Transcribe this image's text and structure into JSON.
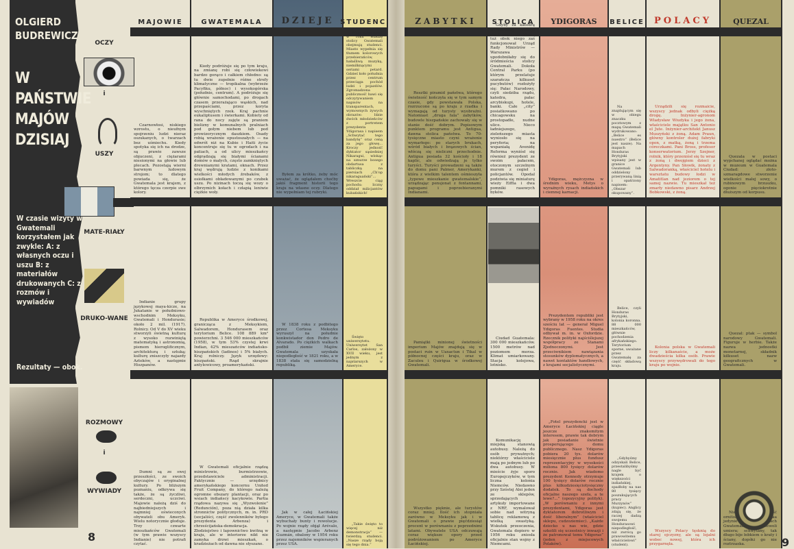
{
  "sidebar": {
    "author": "OLGIERD BUDREWICZ",
    "title_lines": [
      "W",
      "PAŃSTWIE",
      "MAJÓW",
      "DZISIAJ"
    ],
    "intro": "W czasie wizyty w Gwatemali korzystałem jak zwykle: A: z własnych oczu i uszu B: z materiałów drukowanych C: z rozmów i wywiadów",
    "outro": "Rezultaty — obok."
  },
  "sources": {
    "a_label_top": "OCZY",
    "a_label_mid": "i",
    "a_label_bottom": "USZY",
    "b_label_top": "MATE-RIAŁY",
    "b_label_bottom": "DRUKO-WANE",
    "c_label_top": "ROZMOWY",
    "c_label_mid": "i",
    "c_label_bottom": "WYWIADY",
    "icons": [
      "eye-icon",
      "ear-icon",
      "guatemala-flag",
      "reading-man-icon",
      "mouth-icon",
      "mouth-icon"
    ]
  },
  "colors": {
    "dark": "#2b2b2b",
    "paper": "#e8e3d2",
    "dzieje_blue": "#5f7386",
    "studenci_yellow": "#e9de9c",
    "zabytki_olive": "#aaa06a",
    "ydigoras_salmon": "#e3a48d",
    "polacy_red": "#c0392b"
  },
  "columns": [
    {
      "id": "majowie",
      "header": "MAJOWIE",
      "cells": [
        "Czarnowłosi, niskiego wzrostu, o nieufnym spojrzeniu ludzi nieraz oszukanych, o twarzach bez uśmiechu. Kiedy spotyka się ich na drodze, są prawie zawsze objuczeni, z ciężarami niesionymi na głowie lub plecach. Pozostają wierni barwnym ludowym strojom; to dlatego powiada się, że Gwatemala jest krajem, z którego tęcza czerpie swe kolory.",
        "Indianie grupy językowej maya-kicze, na Jukatanie w południowo-wschodnim Meksyku, Gwatemali i Hondurasie; około 2 mil. (1917). Rolnicy. Od V do XV wieku stworzyli świetną kulturę z wysoko rozwiniętą matematyką i astronomią, pismem hieroglificznym, architekturą i sztuką; kulturę zniszczyły najazdy Azteków, a następnie Hiszpanów.",
        "Dumni są ze swej przeszłości, ze swoich obyczajów i oryginalnej kultury. Po bliższym poznaniu, odkrywa się także, że są życzliwi, serdeczni, uczciwi. Majowie należą dziś do najbiedniejszych i najmniej oświeconych obywateli obu Ameryk. Wielu notorycznie głoduje. Trzy czwarte mieszkańców Gwatemali (w tym prawie wszyscy Indianie) nie potrafi czytać."
      ]
    },
    {
      "id": "gwatemala",
      "header": "GWATEMALA",
      "cells": [
        "Kiedy podróżuje się po tym kraju, na zmianę robi się człowiekowi bardzo gorąco i całkiem chłodno: są tu dwie zupełnie różne strefy klimatyczne — tropikalna (wybrzeże Pacyfiku, północ) i wysokogórska (południe, centrum). A podróżuje się głównie samochodami, po drogach czasem przerażająco wąskich, nad przepaściami, przez koryta wyschniętych rzek. Kraj pachnie eukaliptusem i świerkami. Kobiety od rana do nocy zajęte są praniem bielizny w komunalnych pralniach pod gołym niebem lub pod prowizorycznym daszkiem. Osady robią wrażenie opustoszałych — na odwrót niż na Kubie i Haiti życie koncentruje się tu w ogrodach i na patiach, a od ulicy mieszkańcy odgradzają się białymi ścianami domów o małych, często zamkniętych drewnianymi kratami, oknach. Przez kraj wędrują ludzie z konikami wielkości młodych źrebaków, z osiołkami obładowanymi po czubek uszu. Po nizinach toczą się wozy o olbrzymich kołach i człapią leniwie ciężkie woły.",
        "Republika w Ameryce środkowej, granicząca z Meksykiem, Salwadorem, Hondurasem oraz terytorium Belice. 108 889 km² powierzchni. 3 546 000 mieszkańców (1958), w tym 53% czystej krwi Indian, 42% mieszańców indiańsko-hiszpańskich (ladinos) i 5% białych. Kraj rolniczy. Język urzędowy: hiszpański. Rząd skrajnie antylewicowy, proamerykański.",
        "W Gwatemali oficjalnie rządzą ministrowie, burmistrzowie, przedstawiciele administracji. Faktycznie — urzędnicy amerykańskiego koncernu United Fruit Company, do którego należą ogromne obszary plantacji, oraz po wsiach indiańscy kacykowie. Partia rządowa nazywa się „Wyzwolenie” (Redunción), poza nią działa kilka stronnictw politycznych, m. in. PRD (socjaliści, część zwolenników byłego prezydenta Arbenza) i chrześcijańska-demokracja. Złodziejstwo i łapownictwo kwitną w kraju, ale w interiorze nikt nie zamyka drzwi mieszkań, o kradzieżach od dawna nie słyszano."
      ]
    },
    {
      "id": "dzieje",
      "header": "DZIEJE",
      "cells": [
        "Byłem za krótko, żeby móc uważać, że oglądałem choćby jakiś fragment historii tego kraju na własne oczy. Dlatego nie wypełniam tej rubryki.",
        "W 1838 roku z podbitego przez Cortesa Meksyku wyruszył na południe konkwistador don Pedro de Alvarado. Po ciężkich walkach podbił ziemie Majów. Gwatemala uzyskała niepodległość w 1821 roku, a w 1838 stała się samodzielną republiką.",
        "Jak w całej Łacińskiej Ameryce, w Gwatemali także wybuchały bunty i rewolucje. Po wojnie rządy objął Arévalo, a następnie Jacobo Arbenz Guzmán, obalony w 1954 roku przez najemników wspieranych przez USA."
      ]
    },
    {
      "id": "studenci",
      "header": "STUDENCI",
      "cells": [
        "Przez jeden dzień w roku władzę stolicy Gwatemali obejmują studenci. Miasto wypełnia się tłumem kolorowych przebierańców, hałaśliwą muzyką, niemilknącymi seriami petard. Gdzieś koło południa przez centrum przeciąga pochód ludzi i pojazdów. Zgromadzona publiczność bawi się odczytywaniem napisów na transparentach, wymownych żywych obrazów: Idzie dwóch młodzieńców z portretem prezydenta Ydigorasa i napisem „Schwytać tego bandytę” oraz ceną za jego głowę... Kroczy jedność dyktator sąsiedniej Nikaragui, wlokąc na sznurze bosego obdartusa z tabliczką na piersiach „Ch'op nikaraguański”... Wreszcie ciąg pochodu: liczny oddział milicjantów kubańskich!",
        "Święto uniwersytetu. Uniwersytet San Carlos, założony w XVII wieku, jest jednym z najstarszych w Ameryce.",
        "„Takie święto to więcej niż demonstracja” — twierdzą studenci. „Nasze rządy boją się tego dnia.”"
      ]
    },
    {
      "id": "zabytki",
      "header": "ZABYTKI",
      "cells": [
        "Resztki piramid państwa, którego świetność kończyła się w tym samym czasie, gdy powstawała Polska, rozrzucone są po kraju z rzadka i wymagają od turysty wyobraźni. Natomiast „druga fala” zabytków, budowle hiszpańskie zachowały się w stanie dość dobrym. Popisowym punktem programu jest Antigua, dawna stolica państwa. To 70-tysięczne miasto czyni wrażenie wymarłego: po starych brukach, wśród białych i brązowych ścian, włóczą się nieliczni przechodnie. Antigua posiada 32 kościoły i 18 kaplic, ale odwiedzają je tylko turyści. Turyści prowadzeni są także do domu pani Palmer, Amerykanki, która z wielkim talentem ośmieszyła „typowe mieszkanie gwatemalskie”, urządzając pensjonat z fontannami, papugami i poprzebieranymi Indianami.",
        "Pamiątki minionej świetności imperium Majów znajdują się w postaci ruin w Uaxactun i Tikal w północnej części kraju, oraz w Zaculeu i Quirigua w środkowej Gwatemali.",
        "Wszystko pięknie, ale turystów coraz mniej. Ilość ich stopniała zarówno w Meksyku jak i w Gwatemali o prawie pięćdziesiąt procent w porównaniu z poprzednimi latami. Obywatele USA odczuwają coraz większe opory przed podróżowaniem po Ameryce Łacińskiej."
      ]
    },
    {
      "id": "stolica",
      "header": "STOLICA",
      "cells": [
        "Gdyby za katedrą warszawską rozłożył się bazar Różyckiego, tuż obok niego zaś funkcjonował Urząd Rady Ministrów — Warszawa upodobniłaby się do śródmieścia stolicy Gwatemali. Dokoła Central Parku (po którym przelatuje szarańcza kilkuset pucybutów) rozłożyły się: Pałac Narodowy, czyli siedziba rządu, katedra, pałac arcybiskupi, hotele, banki. Całe „city” posiatkowano po chicagowsku na prostopadłe, nudne ulice. Nieco ładniejszego, zieleńszego miasta wyniosło się na peryferia; na wspaniałą Avenidę Reforma wyniósł się również prezydent ze swoim pałacem, otoczonym szczelnym murem z cegieł i policjantów. Opodal podziwia się miniaturę wieży Eiffla i dwa pomniki rasowych byków.",
        "Ciudad Guatemala: 300 000 mieszkańców. 1500 metrów nad poziomem morza. Klimat umiarkowany. Stacja kolejowa, lotnisko.",
        "Komunikację miejską stanowią autobusy. Należą do osób prywatnych; niektórzy właściciele mają po jednym lub po dwa autobusy. W mieście żyje sporo Europejczyków, w tym liczna kolonia Niemców. Niedawno przy Szóstej Alei jeden ze sklepów, sprzedających artykuły importowane z NRF, wymalował sobie nad witryną tablicę reklamową z wielką swastyką. Wskutek przeoczenia, Gwatemala dopiero w 1956 roku zniosła oficjalnie stan wojny z Niemcami."
      ]
    },
    {
      "id": "ydigoras",
      "header": "YDIGORAS",
      "cells": [
        "Ydigoras, mężczyzna w średnim wieku, Metys o wyraźnych rysach indiańskich i ciemnej karnacji.",
        "Prezydentem republiki jest wybrany w 1958 roku na okres sześciu lat — generał Miguel Ydigoras Fuentes. Studia odbywał m. in. w Oxfordzie. Rzecznik polityki najściślejszej współpracy ze Stanami Zjednoczonymi. Jest przeciwnikiem nawiązania stosunków dyplomatycznych, a nawet kontaktów handlowych, z krajami socjalistycznymi.",
        "„Fotel prezydencki jest w Ameryce Łacińskiej ciągle jeszcze znakomitym interesem, prawie tak dobrym jak posiadanie świetnie prosperującego domu publicznego. Nasz Ydigoras pobiera 20 tys. dolarów miesięcznie plus fundusz reprezentacyjny w wysokości miliona 800 tysięcy dolarów rocznie. Jak wiadomo prezydent Kennedy otrzymuje 100 tysięcy dolarów rocznie plus kilkudziesięciotysięczny dodatek. To są dochody oficjalne naszego szefa, a te lewe?...” (opozycyjny polityk). „W porównaniu z innymi prezydentami, Ydigoras jest dyktatorem dobrotliwym i dość liberalnym” (właściciel sklepu, cudzoziemiec). „Każde dziecko u nas wie, gdzie szkolili się uczestnicy inwazji i że patronował temu Ydigoras” (jeden z miejscowych Polaków)."
      ]
    },
    {
      "id": "belice",
      "header": "BELICE",
      "cells": [
        "Na znajdującym się w obiegu znaczku pocztowym z mapą Gwatemali wydrukowano: „Belice es nuestro” (Belice jest nasze). Na mapach Honduras Brytyjski wpisany jest w granice Gwatemali lub oddzielony przerywaną linią i opatrzony napisem: „Obszar okupowany”.",
        "Belice, czyli Honduras Brytyjski, kolonia koronna. 88 000 mieszkańców, głównie pochodzenia afrykańskiego. Terytorium sporne, uważane przez Gwatemalę za część składową kraju.",
        "„Gdybyśmy odzyskali Belice, przestalibyśmy nagle być krajem o większości indiańskiej, spadłoby na nas 80 tysięcy poszukujących pracy Murzynów” (kupiec). Anglicy zdają się, że raczej dadzą swojemu Hondurasowi niepodległość, niż zwrócą go prawowitemu właścicielowi” (student)."
      ]
    },
    {
      "id": "polacy",
      "header": "POLACY",
      "cells": [
        "Urządzili się rozmaicie, wszyscy jednak odbyli ciężką drogę. Inżynier-agronom Władysław Wiudyka i jego żona, właściciele majątku San Antonio el Jute. Inżynier-architekt Janusz Muszyński z żoną. Adam Praun, główny kontroler dużej fabryki opon, z matką, żoną i trzema córeczkami. Pani Bross, profesor konserwatorium. Jerzy Szejner, rolnik, który przeniósł się tu wraz z żoną i dwojgiem dzieci z Argentyny. Pan Słowik, żonaty z Salwadoranką, właściciel hotelu i warsztatu budowy łodzi w Amatitlan nad jeziorem o tej samej nazwie. Tu mieszkał też zmarły niedawno pisarz Andrzej Bobkowski, z żoną.",
        "Kolonia polska w Gwatemali liczy kilkanaście, a może dwadzieścia kilka osób. Prawie wszyscy przywędrowali do tego kraju po wojnie.",
        "Wszyscy Polacy tęsknią do starej ojczyzny, ale są lojalni wobec nowej, która ich przygarnęła."
      ]
    },
    {
      "id": "quezal",
      "header": "QUEZAL",
      "cells": [
        "Quezala w postaci wypchanej oglądać można w muzeum w Guatemala Ciudad: złoto-szmaragdowe stworzenie wielkości małej sowy, o rubinowym brzuszku, ogonie pięciokrotnie dłuższym od korpusu.",
        "Quezal: ptak — symbol narodowy Gwatemali. Figuruje w herbie. Także nazwa jednostki monetarnej, składnik kilkuset nazw geograficznych w Gwatemali.",
        "Niezwykła rzadkość ornitologiczna, mieszka jedynie w wysokich górach Gwatemali. W niewoli umiera; schwytany, tak długo bije łebkiem o kraty i ściany, dopóki go nie roztrzaska."
      ]
    }
  ],
  "footer": {
    "page_left": "8",
    "page_right": "9"
  }
}
